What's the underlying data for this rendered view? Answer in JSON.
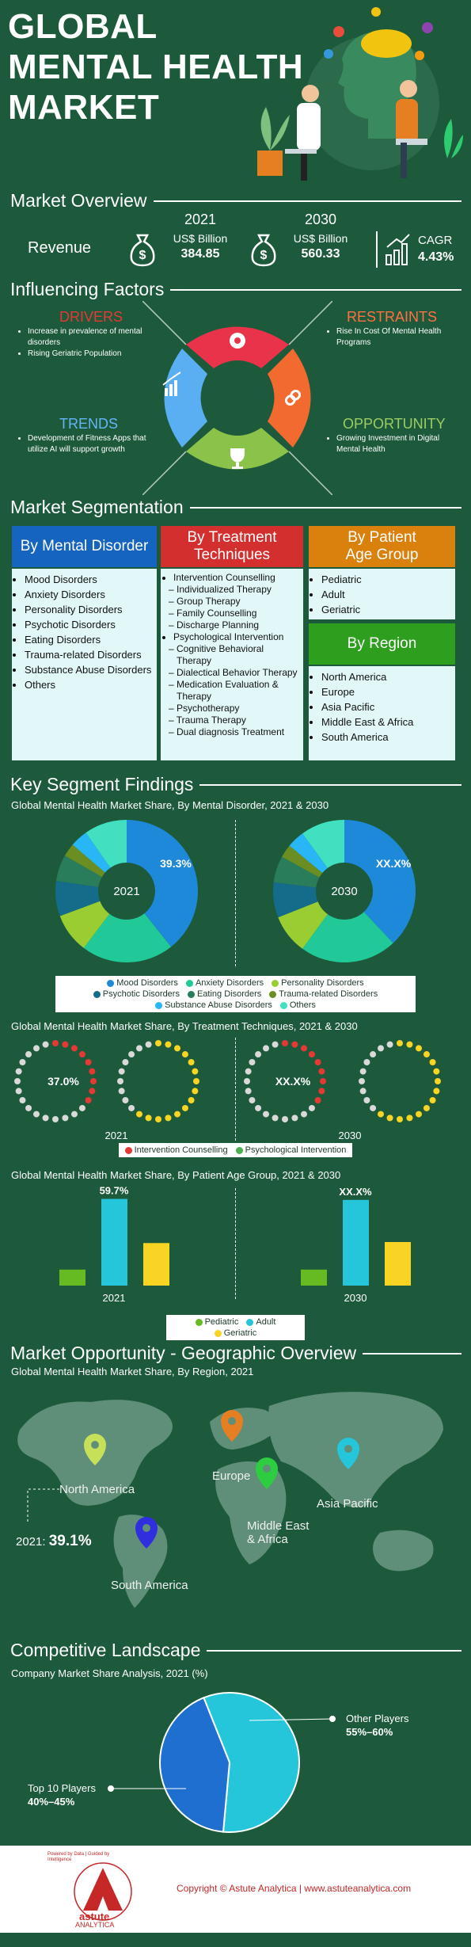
{
  "title_lines": [
    "GLOBAL",
    "MENTAL HEALTH",
    "MARKET"
  ],
  "market_overview": {
    "heading": "Market Overview",
    "revenue_label": "Revenue",
    "y2021": {
      "year": "2021",
      "unit": "US$ Billion",
      "value": "384.85"
    },
    "y2030": {
      "year": "2030",
      "unit": "US$ Billion",
      "value": "560.33"
    },
    "cagr": {
      "label": "CAGR",
      "value": "4.43%"
    }
  },
  "influencing": {
    "heading": "Influencing Factors",
    "drivers": {
      "title": "DRIVERS",
      "items": [
        "Increase in prevalence of mental disorders",
        "Rising Geriatric Population"
      ]
    },
    "restraints": {
      "title": "RESTRAINTS",
      "items": [
        "Rise In Cost Of Mental Health Programs"
      ]
    },
    "trends": {
      "title": "TRENDS",
      "items": [
        "Development of Fitness Apps that utilize AI will support growth"
      ]
    },
    "opportunity": {
      "title": "OPPORTUNITY",
      "items": [
        "Growing Investment in Digital Mental Health"
      ]
    }
  },
  "segmentation": {
    "heading": "Market Segmentation",
    "mental": {
      "title": "By Mental Disorder",
      "items": [
        "Mood Disorders",
        "Anxiety Disorders",
        "Personality Disorders",
        "Psychotic Disorders",
        "Eating Disorders",
        "Trauma-related Disorders",
        "Substance Abuse Disorders",
        "Others"
      ]
    },
    "treatment": {
      "title_lines": [
        "By Treatment",
        "Techniques"
      ],
      "group1": "Intervention Counselling",
      "group1_items": [
        "Individualized Therapy",
        "Group Therapy",
        "Family Counselling",
        "Discharge Planning"
      ],
      "group2": "Psychological Intervention",
      "group2_items": [
        "Cognitive Behavioral Therapy",
        "Dialectical Behavior Therapy",
        "Medication Evaluation & Therapy",
        "Psychotherapy",
        "Trauma Therapy",
        "Dual diagnosis Treatment"
      ]
    },
    "age": {
      "title_lines": [
        "By Patient",
        "Age Group"
      ],
      "items": [
        "Pediatric",
        "Adult",
        "Geriatric"
      ]
    },
    "region": {
      "title": "By Region",
      "items": [
        "North America",
        "Europe",
        "Asia Pacific",
        "Middle East & Africa",
        "South America"
      ]
    }
  },
  "findings": {
    "heading": "Key Segment Findings",
    "mental_chart_title": "Global Mental Health Market Share, By Mental Disorder, 2021 & 2030",
    "treatment_chart_title": "Global Mental Health Market Share, By Treatment Techniques, 2021 & 2030",
    "age_chart_title": "Global Mental Health Market Share, By Patient Age Group, 2021 & 2030"
  },
  "geo": {
    "heading": "Market Opportunity - Geographic Overview",
    "subtitle": "Global Mental Health Market Share, By Region, 2021",
    "labels": {
      "north_america": "North America",
      "europe": "Europe",
      "asia_pacific": "Asia Pacific",
      "mea_line1": "Middle East",
      "mea_line2": "& Africa",
      "south_america": "South America"
    },
    "share_prefix": "2021:",
    "share_value": "39.1%"
  },
  "competitive": {
    "heading": "Competitive Landscape",
    "subtitle": "Company Market Share Analysis, 2021 (%)",
    "other_label": "Other Players",
    "other_value": "55%–60%",
    "top_label": "Top 10 Players",
    "top_value": "40%–45%"
  },
  "footer": {
    "copyright": "Copyright © Astute Analytica  |  www.astuteanalytica.com",
    "logo_text": "astute",
    "logo_sub": "ANALYTICA",
    "tagline": "Powered by Data | Guided by Intelligence"
  },
  "colors": {
    "bg": "#1d5a3b",
    "mood": "#1e88d9",
    "anxiety": "#20c997",
    "personality": "#9acd32",
    "psychotic": "#156b8a",
    "eating": "#2a7d5a",
    "trauma": "#6b8e23",
    "substance": "#29b6f6",
    "others": "#40e0c0",
    "intervention": "#e53935",
    "psychological": "#4caf50",
    "pediatric": "#66bb22",
    "adult": "#26c6da",
    "geriatric": "#f9d423"
  },
  "chart_data": [
    {
      "type": "pie",
      "title": "Global Mental Health Market Share, By Mental Disorder, 2021 & 2030",
      "categories": [
        "Mood Disorders",
        "Anxiety Disorders",
        "Personality Disorders",
        "Psychotic Disorders",
        "Eating Disorders",
        "Trauma-related Disorders",
        "Substance Abuse Disorders",
        "Others"
      ],
      "series": [
        {
          "name": "2021",
          "values": [
            39.3,
            21,
            9,
            8,
            6,
            3,
            4,
            9.7
          ],
          "label": "39.3%",
          "center": "2021"
        },
        {
          "name": "2030",
          "values": [
            38,
            22,
            9,
            8,
            6,
            3,
            4,
            10
          ],
          "label": "XX.X%",
          "center": "2030"
        }
      ],
      "legend": "bottom"
    },
    {
      "type": "pie",
      "title": "Global Mental Health Market Share, By Treatment Techniques, 2021 & 2030",
      "categories": [
        "Intervention Counselling",
        "Psychological Intervention"
      ],
      "series": [
        {
          "name": "2021",
          "values": [
            37,
            63
          ],
          "label": "37.0%"
        },
        {
          "name": "2030",
          "values": [
            36,
            64
          ],
          "label": "XX.X%"
        }
      ],
      "legend": "bottom"
    },
    {
      "type": "bar",
      "title": "Global Mental Health Market Share, By Patient Age Group, 2021 & 2030",
      "categories": [
        "Pediatric",
        "Adult",
        "Geriatric"
      ],
      "series": [
        {
          "name": "2021",
          "values": [
            11,
            59.7,
            29.3
          ],
          "label": "59.7%"
        },
        {
          "name": "2030",
          "values": [
            11,
            59,
            30
          ],
          "label": "XX.X%"
        }
      ],
      "legend": "bottom"
    },
    {
      "type": "pie",
      "title": "Company Market Share Analysis, 2021 (%)",
      "categories": [
        "Other Players",
        "Top 10 Players"
      ],
      "values": [
        57.5,
        42.5
      ]
    }
  ]
}
